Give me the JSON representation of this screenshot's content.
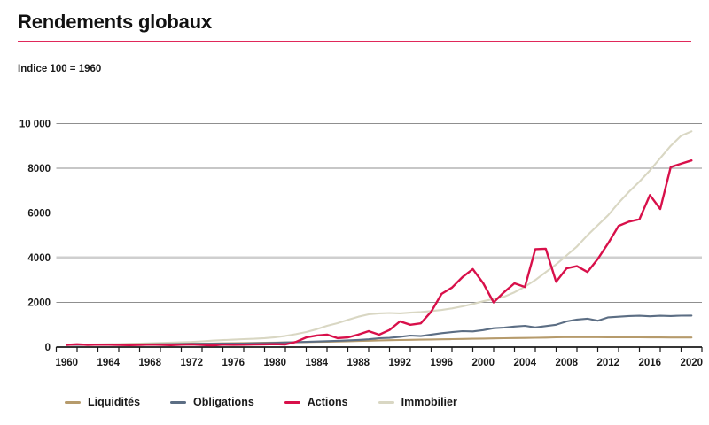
{
  "header": {
    "title": "Rendements globaux",
    "subtitle": "Indice 100 = 1960",
    "rule_color": "#e0285a"
  },
  "colors": {
    "text": "#1a1a1a",
    "axis": "#1a1a1a",
    "grid": "#8f8f8f",
    "grid_highlight": "#cfcfcf",
    "background": "#ffffff"
  },
  "chart_data": {
    "type": "line",
    "title": "Rendements globaux",
    "subtitle": "Indice 100 = 1960",
    "xlabel": "",
    "ylabel": "",
    "ylim": [
      0,
      10000
    ],
    "grid": "horizontal",
    "grid_highlight_value": 4000,
    "legend_position": "bottom",
    "yticks": [
      0,
      2000,
      4000,
      6000,
      8000,
      10000
    ],
    "ytick_labels": [
      "0",
      "2000",
      "4000",
      "6000",
      "8000",
      "10 000"
    ],
    "xtick_labels": [
      "1960",
      "1964",
      "1968",
      "1972",
      "1976",
      "1980",
      "1984",
      "1988",
      "1992",
      "1996",
      "2000",
      "2004",
      "2008",
      "2012",
      "2016",
      "2020"
    ],
    "x": [
      1960,
      1961,
      1962,
      1963,
      1964,
      1965,
      1966,
      1967,
      1968,
      1969,
      1970,
      1971,
      1972,
      1973,
      1974,
      1975,
      1976,
      1977,
      1978,
      1979,
      1980,
      1981,
      1982,
      1983,
      1984,
      1985,
      1986,
      1987,
      1988,
      1989,
      1990,
      1991,
      1992,
      1993,
      1994,
      1995,
      1996,
      1997,
      1998,
      1999,
      2000,
      2001,
      2002,
      2003,
      2004,
      2005,
      2006,
      2007,
      2008,
      2009,
      2010,
      2011,
      2012,
      2013,
      2014,
      2015,
      2016,
      2017,
      2018,
      2019,
      2020
    ],
    "series": [
      {
        "name": "Liquidités",
        "color": "#b69b6c",
        "values": [
          100,
          103,
          106,
          110,
          113,
          117,
          121,
          125,
          129,
          134,
          140,
          145,
          150,
          156,
          163,
          170,
          176,
          182,
          188,
          194,
          200,
          208,
          216,
          224,
          232,
          240,
          250,
          260,
          272,
          286,
          300,
          310,
          318,
          326,
          333,
          340,
          348,
          356,
          364,
          372,
          380,
          388,
          395,
          402,
          409,
          415,
          425,
          435,
          442,
          445,
          444,
          442,
          440,
          438,
          436,
          434,
          432,
          430,
          428,
          427,
          426
        ]
      },
      {
        "name": "Obligations",
        "color": "#5c6e84",
        "values": [
          100,
          102,
          105,
          107,
          110,
          112,
          115,
          118,
          122,
          126,
          130,
          138,
          145,
          148,
          152,
          155,
          158,
          160,
          170,
          180,
          190,
          205,
          220,
          235,
          250,
          265,
          280,
          300,
          320,
          350,
          395,
          410,
          460,
          515,
          490,
          560,
          620,
          670,
          713,
          700,
          760,
          844,
          870,
          920,
          950,
          880,
          940,
          1000,
          1150,
          1230,
          1270,
          1180,
          1330,
          1360,
          1390,
          1400,
          1380,
          1400,
          1390,
          1405,
          1410
        ]
      },
      {
        "name": "Actions",
        "color": "#d8104a",
        "values": [
          100,
          125,
          98,
          110,
          106,
          96,
          86,
          98,
          112,
          102,
          88,
          106,
          118,
          96,
          70,
          110,
          102,
          108,
          114,
          124,
          132,
          120,
          230,
          430,
          520,
          560,
          400,
          430,
          560,
          712,
          555,
          765,
          1150,
          1000,
          1060,
          1580,
          2380,
          2660,
          3130,
          3490,
          2850,
          2000,
          2460,
          2850,
          2690,
          4380,
          4400,
          2920,
          3520,
          3620,
          3360,
          3940,
          4650,
          5420,
          5610,
          5720,
          6800,
          6180,
          8050,
          8200,
          8350
        ]
      },
      {
        "name": "Immobilier",
        "color": "#d9d7c3",
        "values": [
          100,
          106,
          113,
          121,
          130,
          140,
          150,
          160,
          172,
          185,
          200,
          214,
          230,
          258,
          290,
          312,
          332,
          355,
          372,
          400,
          440,
          500,
          580,
          675,
          800,
          950,
          1070,
          1220,
          1360,
          1465,
          1510,
          1525,
          1510,
          1540,
          1570,
          1610,
          1660,
          1730,
          1820,
          1930,
          2050,
          2150,
          2250,
          2450,
          2700,
          3000,
          3350,
          3700,
          4100,
          4500,
          5000,
          5450,
          5900,
          6450,
          6950,
          7400,
          7900,
          8450,
          9000,
          9450,
          9650
        ]
      }
    ]
  }
}
